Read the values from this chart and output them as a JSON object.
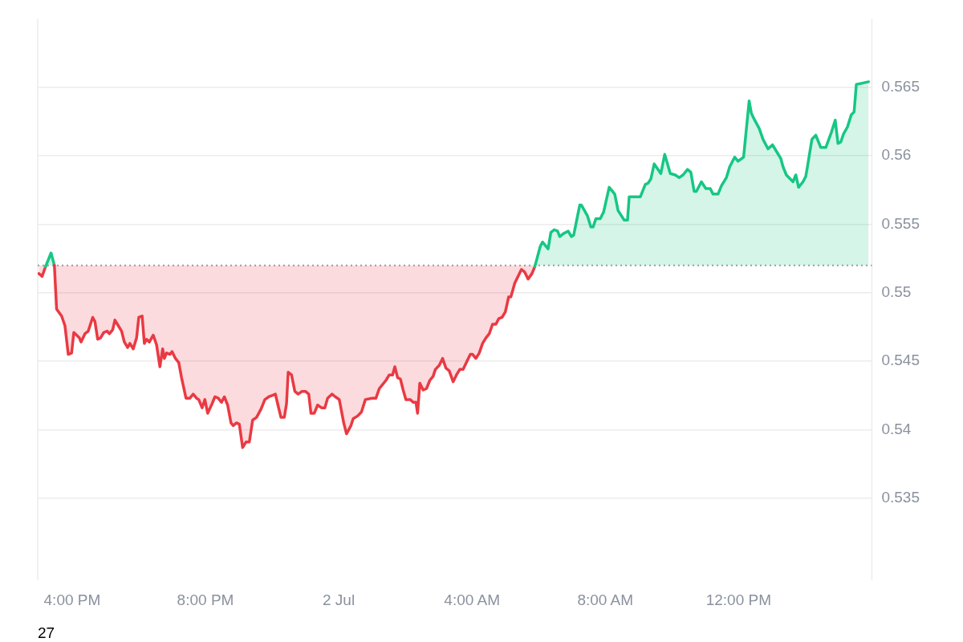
{
  "chart_data": {
    "type": "area",
    "xlim": [
      "--07-01T14:58",
      "--07-02T16:00"
    ],
    "xticks": [
      {
        "value": "--07-01T16:00",
        "label": "4:00 PM"
      },
      {
        "value": "--07-01T20:00",
        "label": "8:00 PM"
      },
      {
        "value": "--07-02T00:00",
        "label": "2 Jul"
      },
      {
        "value": "--07-02T04:00",
        "label": "4:00 AM"
      },
      {
        "value": "--07-02T08:00",
        "label": "8:00 AM"
      },
      {
        "value": "--07-02T12:00",
        "label": "12:00 PM"
      }
    ],
    "ylim": [
      0.529,
      0.57
    ],
    "yticks": [
      0.535,
      0.54,
      0.545,
      0.55,
      0.555,
      0.56,
      0.565
    ],
    "grid": "y",
    "legend": false,
    "marker": "none",
    "line_style": "solid",
    "ref_lines": [
      {
        "axis": "y",
        "value": 0.552,
        "color": "#9aa0ab",
        "line_style": "dotted"
      }
    ],
    "annotations": [
      "27"
    ],
    "series": [
      {
        "x": [
          "--07-01T15:00",
          "--07-01T15:06",
          "--07-01T15:12",
          "--07-01T15:22",
          "--07-01T15:28",
          "--07-01T15:32",
          "--07-01T15:41",
          "--07-01T15:47",
          "--07-01T15:53",
          "--07-01T15:59",
          "--07-01T16:03",
          "--07-01T16:13",
          "--07-01T16:16",
          "--07-01T16:23",
          "--07-01T16:29",
          "--07-01T16:37",
          "--07-01T16:41",
          "--07-01T16:46",
          "--07-01T16:51",
          "--07-01T16:57",
          "--07-01T17:03",
          "--07-01T17:07",
          "--07-01T17:13",
          "--07-01T17:17",
          "--07-01T17:23",
          "--07-01T17:29",
          "--07-01T17:34",
          "--07-01T17:40",
          "--07-01T17:44",
          "--07-01T17:50",
          "--07-01T17:56",
          "--07-01T18:00",
          "--07-01T18:06",
          "--07-01T18:10",
          "--07-01T18:14",
          "--07-01T18:19",
          "--07-01T18:26",
          "--07-01T18:32",
          "--07-01T18:38",
          "--07-01T18:43",
          "--07-01T18:46",
          "--07-01T18:50",
          "--07-01T18:56",
          "--07-01T19:00",
          "--07-01T19:06",
          "--07-01T19:12",
          "--07-01T19:17",
          "--07-01T19:25",
          "--07-01T19:32",
          "--07-01T19:38",
          "--07-01T19:44",
          "--07-01T19:48",
          "--07-01T19:54",
          "--07-01T19:59",
          "--07-01T20:04",
          "--07-01T20:12",
          "--07-01T20:17",
          "--07-01T20:23",
          "--07-01T20:29",
          "--07-01T20:34",
          "--07-01T20:40",
          "--07-01T20:46",
          "--07-01T20:50",
          "--07-01T20:56",
          "--07-01T21:01",
          "--07-01T21:07",
          "--07-01T21:13",
          "--07-01T21:19",
          "--07-01T21:25",
          "--07-01T21:32",
          "--07-01T21:40",
          "--07-01T21:47",
          "--07-01T21:54",
          "--07-01T22:00",
          "--07-01T22:06",
          "--07-01T22:10",
          "--07-01T22:16",
          "--07-01T22:22",
          "--07-01T22:26",
          "--07-01T22:29",
          "--07-01T22:35",
          "--07-01T22:41",
          "--07-01T22:47",
          "--07-01T22:54",
          "--07-01T23:00",
          "--07-01T23:06",
          "--07-01T23:10",
          "--07-01T23:16",
          "--07-01T23:22",
          "--07-01T23:29",
          "--07-01T23:35",
          "--07-01T23:40",
          "--07-01T23:48",
          "--07-01T23:54",
          "--07-02T00:01",
          "--07-02T00:09",
          "--07-02T00:14",
          "--07-02T00:22",
          "--07-02T00:26",
          "--07-02T00:34",
          "--07-02T00:41",
          "--07-02T00:48",
          "--07-02T01:00",
          "--07-02T01:07",
          "--07-02T01:13",
          "--07-02T01:19",
          "--07-02T01:25",
          "--07-02T01:31",
          "--07-02T01:37",
          "--07-02T01:41",
          "--07-02T01:46",
          "--07-02T01:51",
          "--07-02T01:56",
          "--07-02T02:01",
          "--07-02T02:09",
          "--07-02T02:14",
          "--07-02T02:19",
          "--07-02T02:22",
          "--07-02T02:26",
          "--07-02T02:32",
          "--07-02T02:38",
          "--07-02T02:44",
          "--07-02T02:50",
          "--07-02T02:54",
          "--07-02T03:01",
          "--07-02T03:07",
          "--07-02T03:13",
          "--07-02T03:19",
          "--07-02T03:26",
          "--07-02T03:32",
          "--07-02T03:38",
          "--07-02T03:44",
          "--07-02T03:51",
          "--07-02T03:57",
          "--07-02T04:01",
          "--07-02T04:07",
          "--07-02T04:13",
          "--07-02T04:19",
          "--07-02T04:25",
          "--07-02T04:31",
          "--07-02T04:37",
          "--07-02T04:43",
          "--07-02T04:48",
          "--07-02T04:54",
          "--07-02T05:00",
          "--07-02T05:06",
          "--07-02T05:10",
          "--07-02T05:17",
          "--07-02T05:29",
          "--07-02T05:35",
          "--07-02T05:41",
          "--07-02T05:48",
          "--07-02T05:53",
          "--07-02T06:03",
          "--07-02T06:07",
          "--07-02T06:17",
          "--07-02T06:22",
          "--07-02T06:28",
          "--07-02T06:34",
          "--07-02T06:38",
          "--07-02T06:44",
          "--07-02T06:53",
          "--07-02T06:59",
          "--07-02T07:03",
          "--07-02T07:14",
          "--07-02T07:17",
          "--07-02T07:28",
          "--07-02T07:34",
          "--07-02T07:38",
          "--07-02T07:43",
          "--07-02T07:51",
          "--07-02T07:57",
          "--07-02T08:07",
          "--07-02T08:17",
          "--07-02T08:23",
          "--07-02T08:34",
          "--07-02T08:40",
          "--07-02T08:43",
          "--07-02T08:53",
          "--07-02T09:03",
          "--07-02T09:12",
          "--07-02T09:17",
          "--07-02T09:22",
          "--07-02T09:28",
          "--07-02T09:40",
          "--07-02T09:47",
          "--07-02T09:57",
          "--07-02T10:06",
          "--07-02T10:13",
          "--07-02T10:20",
          "--07-02T10:28",
          "--07-02T10:34",
          "--07-02T10:40",
          "--07-02T10:44",
          "--07-02T10:53",
          "--07-02T11:01",
          "--07-02T11:09",
          "--07-02T11:14",
          "--07-02T11:23",
          "--07-02T11:29",
          "--07-02T11:38",
          "--07-02T11:44",
          "--07-02T11:53",
          "--07-02T11:59",
          "--07-02T12:09",
          "--07-02T12:19",
          "--07-02T12:23",
          "--07-02T12:29",
          "--07-02T12:37",
          "--07-02T12:44",
          "--07-02T12:53",
          "--07-02T13:01",
          "--07-02T13:07",
          "--07-02T13:16",
          "--07-02T13:20",
          "--07-02T13:26",
          "--07-02T13:38",
          "--07-02T13:43",
          "--07-02T13:48",
          "--07-02T13:56",
          "--07-02T14:01",
          "--07-02T14:04",
          "--07-02T14:12",
          "--07-02T14:19",
          "--07-02T14:28",
          "--07-02T14:37",
          "--07-02T14:47",
          "--07-02T14:54",
          "--07-02T14:59",
          "--07-02T15:04",
          "--07-02T15:09",
          "--07-02T15:16",
          "--07-02T15:23",
          "--07-02T15:28",
          "--07-02T15:32",
          "--07-02T15:43",
          "--07-02T15:54"
        ],
        "values": [
          0.5514,
          0.5512,
          0.5519,
          0.5529,
          0.552,
          0.5488,
          0.5483,
          0.5476,
          0.5455,
          0.5456,
          0.5471,
          0.5467,
          0.5464,
          0.547,
          0.5472,
          0.5482,
          0.5479,
          0.5466,
          0.5467,
          0.5471,
          0.5472,
          0.547,
          0.5473,
          0.548,
          0.5476,
          0.5472,
          0.5464,
          0.546,
          0.5463,
          0.5459,
          0.5467,
          0.5482,
          0.5483,
          0.5463,
          0.5466,
          0.5464,
          0.5469,
          0.5462,
          0.5446,
          0.5459,
          0.5452,
          0.5456,
          0.5455,
          0.5457,
          0.5452,
          0.5449,
          0.5438,
          0.5423,
          0.5423,
          0.5426,
          0.5423,
          0.5422,
          0.5416,
          0.5422,
          0.5412,
          0.5419,
          0.5424,
          0.5423,
          0.542,
          0.5424,
          0.5418,
          0.5405,
          0.5403,
          0.5405,
          0.5404,
          0.5387,
          0.5391,
          0.5391,
          0.5407,
          0.5409,
          0.5415,
          0.5422,
          0.5424,
          0.5425,
          0.5426,
          0.5419,
          0.5409,
          0.5409,
          0.5419,
          0.5442,
          0.544,
          0.5428,
          0.5426,
          0.5428,
          0.5428,
          0.5426,
          0.5412,
          0.5412,
          0.5418,
          0.5416,
          0.5416,
          0.5423,
          0.5426,
          0.5424,
          0.5422,
          0.5405,
          0.5397,
          0.5403,
          0.5408,
          0.541,
          0.5413,
          0.5422,
          0.5423,
          0.5423,
          0.543,
          0.5433,
          0.5436,
          0.544,
          0.544,
          0.5446,
          0.5438,
          0.5437,
          0.5429,
          0.5422,
          0.5422,
          0.542,
          0.542,
          0.5412,
          0.5434,
          0.5429,
          0.543,
          0.5436,
          0.5439,
          0.5444,
          0.5447,
          0.5452,
          0.5445,
          0.5443,
          0.5435,
          0.544,
          0.5444,
          0.5444,
          0.545,
          0.5455,
          0.5455,
          0.5452,
          0.5456,
          0.5463,
          0.5467,
          0.547,
          0.5477,
          0.5477,
          0.5481,
          0.5482,
          0.5486,
          0.5497,
          0.5497,
          0.5507,
          0.5517,
          0.5515,
          0.551,
          0.5514,
          0.5519,
          0.5534,
          0.5537,
          0.5532,
          0.5544,
          0.5546,
          0.5545,
          0.5541,
          0.5543,
          0.5545,
          0.5541,
          0.5542,
          0.5564,
          0.5564,
          0.5556,
          0.5548,
          0.5548,
          0.5554,
          0.5554,
          0.5559,
          0.5577,
          0.5572,
          0.556,
          0.5553,
          0.5553,
          0.557,
          0.557,
          0.557,
          0.5579,
          0.558,
          0.5583,
          0.5594,
          0.5587,
          0.5601,
          0.5587,
          0.5586,
          0.5584,
          0.5586,
          0.559,
          0.5588,
          0.5574,
          0.5574,
          0.5581,
          0.5576,
          0.5576,
          0.5572,
          0.5572,
          0.5578,
          0.5584,
          0.5592,
          0.5599,
          0.5596,
          0.5599,
          0.564,
          0.5631,
          0.5626,
          0.562,
          0.5612,
          0.5605,
          0.5608,
          0.5604,
          0.5598,
          0.5592,
          0.5586,
          0.5581,
          0.5586,
          0.5577,
          0.5581,
          0.5585,
          0.5592,
          0.5612,
          0.5615,
          0.5606,
          0.5606,
          0.5617,
          0.5626,
          0.5609,
          0.561,
          0.5616,
          0.5621,
          0.563,
          0.5632,
          0.5652,
          0.5653,
          0.5654
        ],
        "colors": [
          "#ea3943",
          "#ea3943",
          "#ea3943",
          "#16c784",
          "#16c784",
          "#ea3943",
          "#ea3943",
          "#ea3943",
          "#ea3943",
          "#ea3943",
          "#ea3943",
          "#ea3943",
          "#ea3943",
          "#ea3943",
          "#ea3943",
          "#ea3943",
          "#ea3943",
          "#ea3943",
          "#ea3943",
          "#ea3943",
          "#ea3943",
          "#ea3943",
          "#ea3943",
          "#ea3943",
          "#ea3943",
          "#ea3943",
          "#ea3943",
          "#ea3943",
          "#ea3943",
          "#ea3943",
          "#ea3943",
          "#ea3943",
          "#ea3943",
          "#ea3943",
          "#ea3943",
          "#ea3943",
          "#ea3943",
          "#ea3943",
          "#ea3943",
          "#ea3943",
          "#ea3943",
          "#ea3943",
          "#ea3943",
          "#ea3943",
          "#ea3943",
          "#ea3943",
          "#ea3943",
          "#ea3943",
          "#ea3943",
          "#ea3943",
          "#ea3943",
          "#ea3943",
          "#ea3943",
          "#ea3943",
          "#ea3943",
          "#ea3943",
          "#ea3943",
          "#ea3943",
          "#ea3943",
          "#ea3943",
          "#ea3943",
          "#ea3943",
          "#ea3943",
          "#ea3943",
          "#ea3943",
          "#ea3943",
          "#ea3943",
          "#ea3943",
          "#ea3943",
          "#ea3943",
          "#ea3943",
          "#ea3943",
          "#ea3943",
          "#ea3943",
          "#ea3943",
          "#ea3943",
          "#ea3943",
          "#ea3943",
          "#ea3943",
          "#ea3943",
          "#ea3943",
          "#ea3943",
          "#ea3943",
          "#ea3943",
          "#ea3943",
          "#ea3943",
          "#ea3943",
          "#ea3943",
          "#ea3943",
          "#ea3943",
          "#ea3943",
          "#ea3943",
          "#ea3943",
          "#ea3943",
          "#ea3943",
          "#ea3943",
          "#ea3943",
          "#ea3943",
          "#ea3943",
          "#ea3943",
          "#ea3943",
          "#ea3943",
          "#ea3943",
          "#ea3943",
          "#ea3943",
          "#ea3943",
          "#ea3943",
          "#ea3943",
          "#ea3943",
          "#ea3943",
          "#ea3943",
          "#ea3943",
          "#ea3943",
          "#ea3943",
          "#ea3943",
          "#ea3943",
          "#ea3943",
          "#ea3943",
          "#ea3943",
          "#ea3943",
          "#ea3943",
          "#ea3943",
          "#ea3943",
          "#ea3943",
          "#ea3943",
          "#ea3943",
          "#ea3943",
          "#ea3943",
          "#ea3943",
          "#ea3943",
          "#ea3943",
          "#ea3943",
          "#ea3943",
          "#ea3943",
          "#ea3943",
          "#ea3943",
          "#ea3943",
          "#ea3943",
          "#ea3943",
          "#ea3943",
          "#ea3943",
          "#ea3943",
          "#ea3943",
          "#ea3943",
          "#ea3943",
          "#ea3943",
          "#ea3943",
          "#ea3943",
          "#ea3943",
          "#ea3943",
          "#ea3943",
          "#ea3943",
          "#ea3943",
          "#16c784",
          "#16c784",
          "#16c784",
          "#16c784",
          "#16c784",
          "#16c784",
          "#16c784",
          "#16c784",
          "#16c784",
          "#16c784",
          "#16c784",
          "#16c784",
          "#16c784",
          "#16c784",
          "#16c784",
          "#16c784",
          "#16c784",
          "#16c784",
          "#16c784",
          "#16c784",
          "#16c784",
          "#16c784",
          "#16c784",
          "#16c784",
          "#16c784",
          "#16c784",
          "#16c784",
          "#16c784",
          "#16c784",
          "#16c784",
          "#16c784",
          "#16c784",
          "#16c784",
          "#16c784",
          "#16c784",
          "#16c784",
          "#16c784",
          "#16c784",
          "#16c784",
          "#16c784",
          "#16c784",
          "#16c784",
          "#16c784",
          "#16c784",
          "#16c784",
          "#16c784",
          "#16c784",
          "#16c784",
          "#16c784",
          "#16c784",
          "#16c784",
          "#16c784",
          "#16c784",
          "#16c784",
          "#16c784",
          "#16c784",
          "#16c784",
          "#16c784",
          "#16c784",
          "#16c784",
          "#16c784",
          "#16c784",
          "#16c784",
          "#16c784",
          "#16c784",
          "#16c784",
          "#16c784",
          "#16c784",
          "#16c784",
          "#16c784",
          "#16c784",
          "#16c784",
          "#16c784",
          "#16c784",
          "#16c784",
          "#16c784",
          "#16c784",
          "#16c784",
          "#16c784",
          "#16c784",
          "#16c784",
          "#16c784",
          "#16c784",
          "#16c784"
        ]
      }
    ]
  }
}
